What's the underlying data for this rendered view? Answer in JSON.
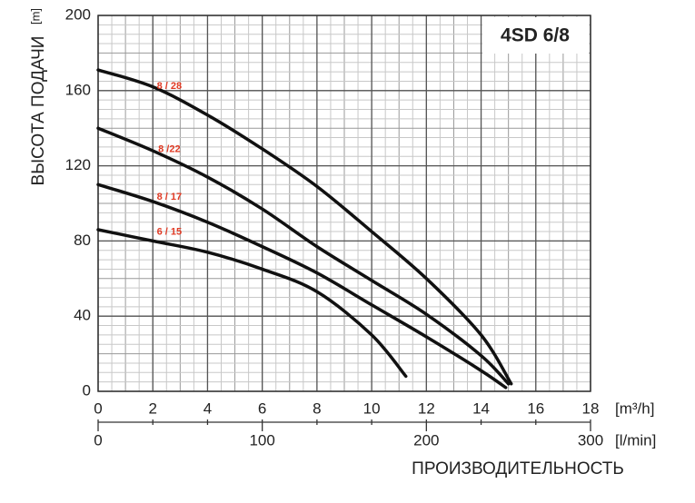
{
  "chart_data": {
    "type": "line",
    "title": "4SD 6/8",
    "x_label": "[m³/h]",
    "x2_label": "[l/min]",
    "y_label": "ВЫСОТА ПОДАЧИ",
    "y_unit": "[m]",
    "bottom_label": "ПРОИЗВОДИТЕЛЬНОСТЬ",
    "xlim": [
      0,
      18
    ],
    "xticks": [
      0,
      2,
      4,
      6,
      8,
      10,
      12,
      14,
      16,
      18
    ],
    "x2lim": [
      0,
      300
    ],
    "x2ticks": [
      0,
      100,
      200,
      300
    ],
    "ylim": [
      0,
      200
    ],
    "yticks": [
      0,
      40,
      80,
      120,
      160,
      200
    ],
    "grid": true,
    "series": [
      {
        "name": "8 / 28",
        "color": "#111111",
        "label_color": "#e03a24",
        "x": [
          0,
          2,
          4,
          6,
          8,
          10,
          12,
          14,
          15.1
        ],
        "values": [
          171,
          162,
          147,
          129,
          109,
          85,
          60,
          30,
          4
        ]
      },
      {
        "name": "8 /22",
        "color": "#111111",
        "label_color": "#e03a24",
        "x": [
          0,
          2,
          4,
          6,
          8,
          10,
          12,
          14,
          15
        ],
        "values": [
          140,
          128,
          114,
          97,
          77,
          59,
          41,
          19,
          4
        ]
      },
      {
        "name": "8 / 17",
        "color": "#111111",
        "label_color": "#e03a24",
        "x": [
          0,
          2,
          4,
          6,
          8,
          10,
          12,
          14,
          14.9
        ],
        "values": [
          110,
          101,
          90,
          77,
          63,
          46,
          29,
          11,
          2
        ]
      },
      {
        "name": "6 / 15",
        "color": "#111111",
        "label_color": "#e03a24",
        "x": [
          0,
          2,
          4,
          6,
          8,
          10,
          11.25
        ],
        "values": [
          86,
          80,
          74,
          65,
          53,
          30,
          8
        ]
      }
    ]
  }
}
